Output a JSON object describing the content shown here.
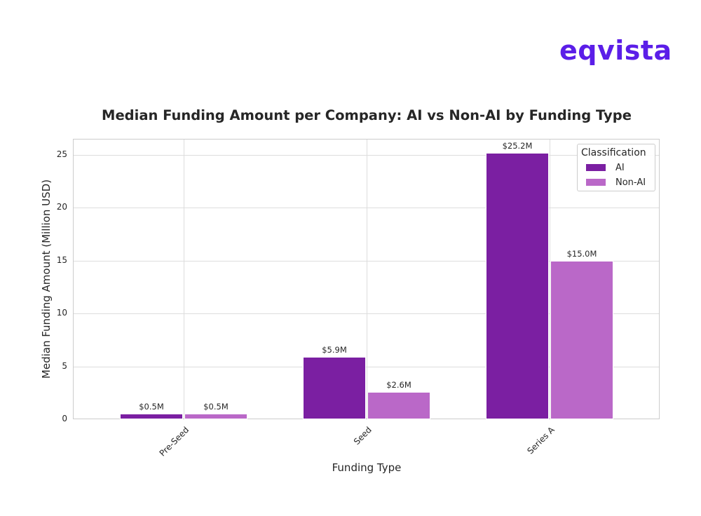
{
  "logo": {
    "text": "eqvista",
    "color": "#5B1EE8"
  },
  "chart_data": {
    "type": "bar",
    "title": "Median Funding Amount per Company: AI vs Non-AI by Funding Type",
    "xlabel": "Funding Type",
    "ylabel": "Median Funding Amount (Million USD)",
    "categories": [
      "Pre-Seed",
      "Seed",
      "Series A"
    ],
    "series": [
      {
        "name": "AI",
        "color": "#7B1FA2",
        "values": [
          0.5,
          5.9,
          25.2
        ],
        "labels": [
          "$0.5M",
          "$5.9M",
          "$25.2M"
        ]
      },
      {
        "name": "Non-AI",
        "color": "#BA68C8",
        "values": [
          0.5,
          2.6,
          15.0
        ],
        "labels": [
          "$0.5M",
          "$2.6M",
          "$15.0M"
        ]
      }
    ],
    "yticks": [
      "0",
      "5",
      "10",
      "15",
      "20",
      "25"
    ],
    "ylim": [
      0,
      26.5
    ],
    "grid": true,
    "legend": {
      "title": "Classification",
      "position": "upper right",
      "entries": [
        "AI",
        "Non-AI"
      ]
    }
  }
}
